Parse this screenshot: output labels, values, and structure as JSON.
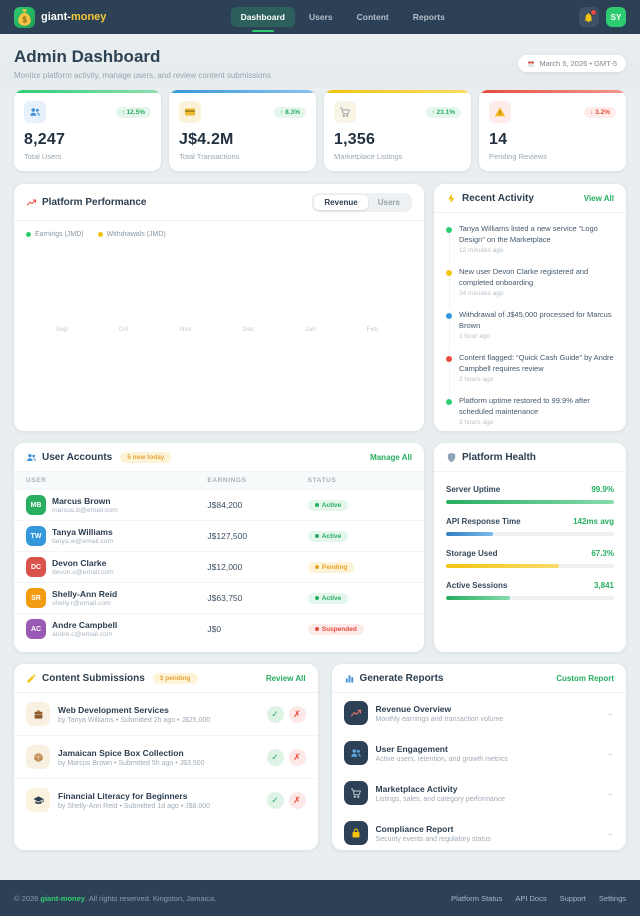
{
  "brand": {
    "prefix": "giant-",
    "suffix": "money",
    "logo_icon": "money-bag-icon"
  },
  "nav": {
    "items": [
      "Dashboard",
      "Users",
      "Content",
      "Reports"
    ],
    "active": "Dashboard",
    "avatar_initials": "SY"
  },
  "hero": {
    "title": "Admin Dashboard",
    "subtitle": "Monitor platform activity, manage users, and review content submissions.",
    "date": "March 5, 2026 • GMT-5"
  },
  "stats": [
    {
      "icon": "users-icon",
      "accent": "green",
      "trend": "↑ 12.5%",
      "dir": "up",
      "value": "8,247",
      "label": "Total Users"
    },
    {
      "icon": "credit-card-icon",
      "accent": "blue",
      "trend": "↑ 8.3%",
      "dir": "up",
      "value": "J$4.2M",
      "label": "Total Transactions"
    },
    {
      "icon": "cart-icon",
      "accent": "yellow",
      "trend": "↑ 23.1%",
      "dir": "up",
      "value": "1,356",
      "label": "Marketplace Listings"
    },
    {
      "icon": "warning-icon",
      "accent": "red",
      "trend": "↓ 3.2%",
      "dir": "down",
      "value": "14",
      "label": "Pending Reviews"
    }
  ],
  "performance": {
    "title": "Platform Performance",
    "icon": "chart-increasing-icon",
    "toggles": [
      "Revenue",
      "Users"
    ],
    "active_toggle": "Revenue",
    "legend": [
      {
        "label": "Earnings (JMD)",
        "color": "#2ecc71"
      },
      {
        "label": "Withdrawals (JMD)",
        "color": "#f1c40f"
      }
    ],
    "months": [
      "Sep",
      "Oct",
      "Nov",
      "Dec",
      "Jan",
      "Feb"
    ]
  },
  "activity": {
    "title": "Recent Activity",
    "icon": "zap-icon",
    "link": "View All",
    "items": [
      {
        "color": "#2ecc71",
        "text": "Tanya Williams listed a new service “Logo Design” on the Marketplace",
        "time": "12 minutes ago"
      },
      {
        "color": "#f1c40f",
        "text": "New user Devon Clarke registered and completed onboarding",
        "time": "34 minutes ago"
      },
      {
        "color": "#3498db",
        "text": "Withdrawal of J$45,000 processed for Marcus Brown",
        "time": "1 hour ago"
      },
      {
        "color": "#e74c3c",
        "text": "Content flagged: “Quick Cash Guide” by Andre Campbell requires review",
        "time": "2 hours ago"
      },
      {
        "color": "#2ecc71",
        "text": "Platform uptime restored to 99.9% after scheduled maintenance",
        "time": "3 hours ago"
      }
    ]
  },
  "users": {
    "title": "User Accounts",
    "icon": "users-icon",
    "badge": "5 new today",
    "link": "Manage All",
    "columns": [
      "USER",
      "EARNINGS",
      "STATUS"
    ],
    "rows": [
      {
        "initials": "MB",
        "color": "#27ae60",
        "name": "Marcus Brown",
        "email": "marcus.b@email.com",
        "earnings": "J$84,200",
        "status": "Active"
      },
      {
        "initials": "TW",
        "color": "#3498db",
        "name": "Tanya Williams",
        "email": "tanya.w@email.com",
        "earnings": "J$127,500",
        "status": "Active"
      },
      {
        "initials": "DC",
        "color": "#d9534a",
        "name": "Devon Clarke",
        "email": "devon.c@email.com",
        "earnings": "J$12,000",
        "status": "Pending"
      },
      {
        "initials": "SR",
        "color": "#f39c12",
        "name": "Shelly-Ann Reid",
        "email": "shelly.r@email.com",
        "earnings": "J$63,750",
        "status": "Active"
      },
      {
        "initials": "AC",
        "color": "#9b59b6",
        "name": "Andre Campbell",
        "email": "andre.c@email.com",
        "earnings": "J$0",
        "status": "Suspended"
      }
    ]
  },
  "health": {
    "title": "Platform Health",
    "icon": "shield-icon",
    "metrics": [
      {
        "label": "Server Uptime",
        "value": "99.9%",
        "pct": 99.9,
        "color": "green"
      },
      {
        "label": "API Response Time",
        "value": "142ms avg",
        "pct": 28,
        "color": "blue"
      },
      {
        "label": "Storage Used",
        "value": "67.3%",
        "pct": 67.3,
        "color": "yellow"
      },
      {
        "label": "Active Sessions",
        "value": "3,841",
        "pct": 38,
        "color": "green"
      }
    ]
  },
  "submissions": {
    "title": "Content Submissions",
    "icon": "memo-pencil-icon",
    "badge": "3 pending",
    "link": "Review All",
    "approve_label": "✓",
    "reject_label": "✗",
    "items": [
      {
        "icon": "briefcase-icon",
        "title": "Web Development Services",
        "meta": "by Tanya Williams • Submitted 2h ago • J$25,000"
      },
      {
        "icon": "package-icon",
        "title": "Jamaican Spice Box Collection",
        "meta": "by Marcus Brown • Submitted 5h ago • J$3,500"
      },
      {
        "icon": "graduation-cap-icon",
        "title": "Financial Literacy for Beginners",
        "meta": "by Shelly-Ann Reid • Submitted 1d ago • J$8,000"
      }
    ]
  },
  "reports": {
    "title": "Generate Reports",
    "icon": "bar-chart-icon",
    "link": "Custom Report",
    "arrow": "→",
    "items": [
      {
        "icon": "chart-increasing-icon",
        "icon_color": "#e8736a",
        "title": "Revenue Overview",
        "desc": "Monthly earnings and transaction volume"
      },
      {
        "icon": "users-icon",
        "icon_color": "#5da9e4",
        "title": "User Engagement",
        "desc": "Active users, retention, and growth metrics"
      },
      {
        "icon": "cart-icon",
        "icon_color": "#c3cdd6",
        "title": "Marketplace Activity",
        "desc": "Listings, sales, and category performance"
      },
      {
        "icon": "lock-icon",
        "icon_color": "#f1c40f",
        "title": "Compliance Report",
        "desc": "Security events and regulatory status"
      }
    ]
  },
  "footer": {
    "copy_prefix": "© 2026 ",
    "brand": "giant-money",
    "copy_suffix": ". All rights reserved. Kingston, Jamaica.",
    "links": [
      "Platform Status",
      "API Docs",
      "Support",
      "Settings"
    ]
  }
}
